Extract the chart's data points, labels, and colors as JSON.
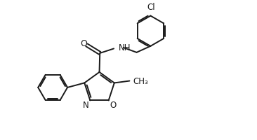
{
  "bg_color": "#ffffff",
  "line_color": "#1a1a1a",
  "lw": 1.4,
  "fs": 8.5,
  "fig_w": 3.66,
  "fig_h": 2.01,
  "dpi": 100,
  "xlim": [
    0,
    10
  ],
  "ylim": [
    0,
    5.5
  ]
}
